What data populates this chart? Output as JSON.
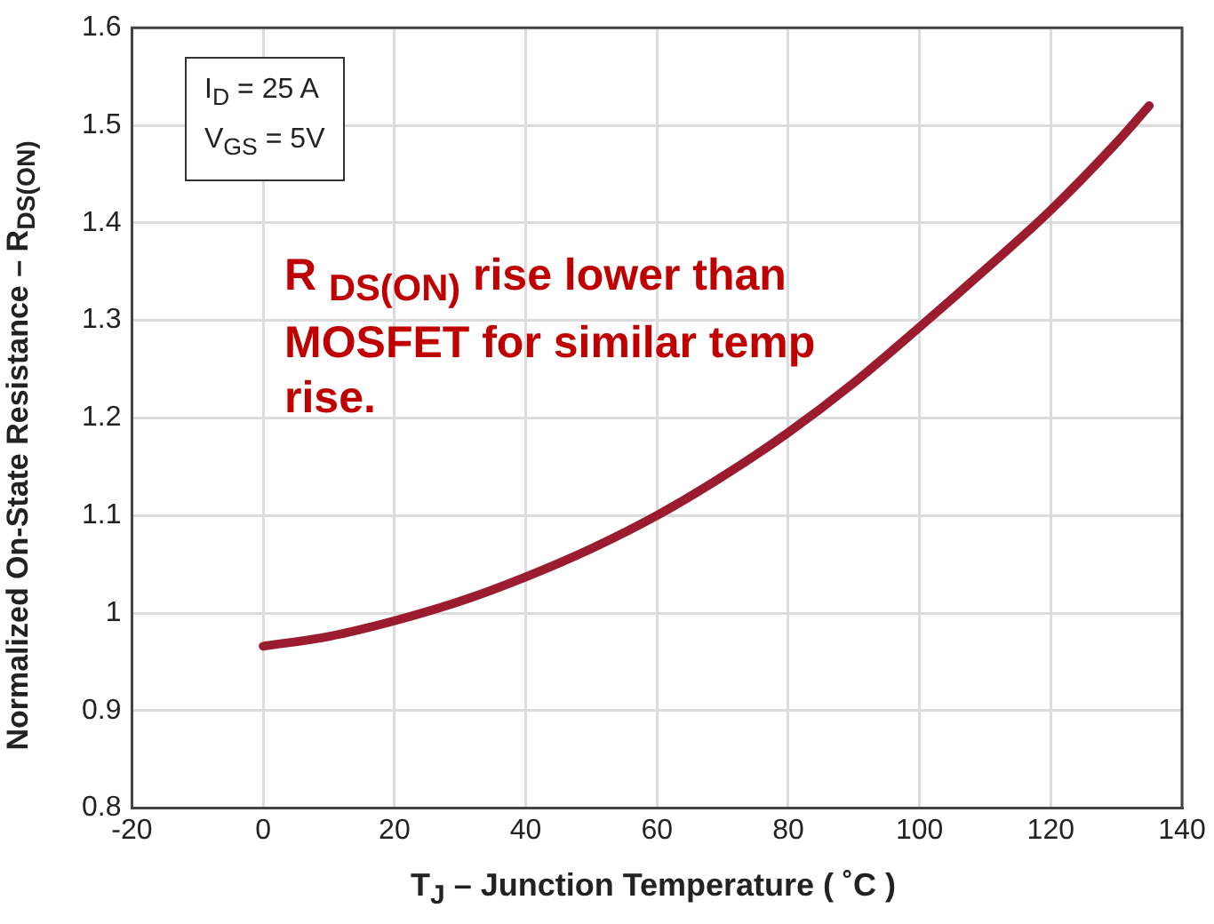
{
  "chart_data": {
    "type": "line",
    "xlabel": "T$_{J}$ – Junction Temperature ( ˚C )",
    "ylabel": "Normalized On-State Resistance – R$_{DS(ON)}$",
    "x": [
      0,
      10,
      20,
      30,
      40,
      50,
      60,
      70,
      80,
      90,
      100,
      110,
      120,
      130,
      135
    ],
    "series": [
      {
        "color": "#9b1c2e",
        "values": [
          0.966,
          0.976,
          0.992,
          1.012,
          1.037,
          1.066,
          1.1,
          1.14,
          1.185,
          1.236,
          1.293,
          1.352,
          1.413,
          1.482,
          1.52
        ]
      }
    ],
    "xlim": [
      -20,
      140
    ],
    "xticks": [
      -20,
      0,
      20,
      40,
      60,
      80,
      100,
      120,
      140
    ],
    "ylim": [
      0.8,
      1.6
    ],
    "yticks": [
      0.8,
      0.9,
      1,
      1.1,
      1.2,
      1.3,
      1.4,
      1.5,
      1.6
    ],
    "grid": true,
    "legend": false,
    "marker": "none",
    "line_style": "solid",
    "annotations": [
      "I$_{D}$ = 25 A",
      "V$_{GS}$ = 5V",
      "R $_{DS(ON)}$ rise lower than MOSFET for similar temp rise."
    ]
  }
}
